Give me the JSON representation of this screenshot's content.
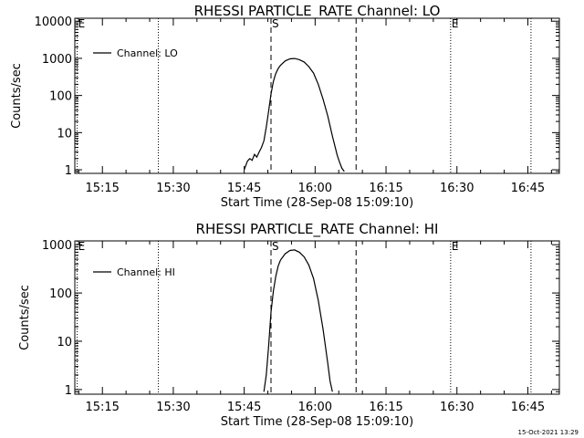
{
  "timestamp": "15-Oct-2021 13:29",
  "chart_data": [
    {
      "type": "line",
      "title": "RHESSI PARTICLE_RATE Channel: LO",
      "xlabel": "Start Time (28-Sep-08 15:09:10)",
      "ylabel": "Counts/sec",
      "y_scale": "log",
      "ylim": [
        0.8,
        12000
      ],
      "xlim": [
        "15:09:10",
        "16:51:40"
      ],
      "x_ticks": [
        "15:15",
        "15:30",
        "15:45",
        "16:00",
        "16:15",
        "16:30",
        "16:45"
      ],
      "y_ticks": [
        "1",
        "10",
        "100",
        "1000",
        "10000"
      ],
      "legend": {
        "label": "Channel: LO",
        "position": "top-left"
      },
      "markers": [
        {
          "label": "E",
          "time": "15:09:40",
          "style": "dotted"
        },
        {
          "label": "",
          "time": "15:26:50",
          "style": "dotted"
        },
        {
          "label": "S",
          "time": "15:50:40",
          "style": "dashed"
        },
        {
          "label": "",
          "time": "16:08:40",
          "style": "dashed"
        },
        {
          "label": "E",
          "time": "16:28:40",
          "style": "dotted"
        },
        {
          "label": "",
          "time": "16:45:40",
          "style": "dotted"
        }
      ],
      "series": [
        {
          "name": "Channel: LO",
          "x": [
            "15:45:00",
            "15:45:40",
            "15:46:10",
            "15:46:40",
            "15:47:10",
            "15:47:40",
            "15:48:10",
            "15:48:40",
            "15:49:10",
            "15:49:40",
            "15:50:10",
            "15:50:40",
            "15:51:10",
            "15:51:40",
            "15:52:10",
            "15:52:40",
            "15:53:40",
            "15:54:40",
            "15:55:40",
            "15:56:40",
            "15:57:40",
            "15:58:40",
            "15:59:40",
            "16:00:40",
            "16:01:40",
            "16:02:40",
            "16:03:40",
            "16:04:40",
            "16:05:10",
            "16:05:40",
            "16:06:10"
          ],
          "y": [
            1,
            1.7,
            2,
            1.8,
            2.6,
            2.2,
            3,
            4,
            6,
            14,
            38,
            110,
            240,
            390,
            530,
            650,
            850,
            970,
            990,
            920,
            800,
            600,
            400,
            200,
            80,
            28,
            8,
            2.5,
            1.6,
            1.1,
            0.9
          ]
        }
      ]
    },
    {
      "type": "line",
      "title": "RHESSI PARTICLE_RATE Channel: HI",
      "xlabel": "Start Time (28-Sep-08 15:09:10)",
      "ylabel": "Counts/sec",
      "y_scale": "log",
      "ylim": [
        0.8,
        1200
      ],
      "xlim": [
        "15:09:10",
        "16:51:40"
      ],
      "x_ticks": [
        "15:15",
        "15:30",
        "15:45",
        "16:00",
        "16:15",
        "16:30",
        "16:45"
      ],
      "y_ticks": [
        "1",
        "10",
        "100",
        "1000"
      ],
      "legend": {
        "label": "Channel: HI",
        "position": "top-left"
      },
      "markers": [
        {
          "label": "E",
          "time": "15:09:40",
          "style": "dotted"
        },
        {
          "label": "",
          "time": "15:26:50",
          "style": "dotted"
        },
        {
          "label": "S",
          "time": "15:50:40",
          "style": "dashed"
        },
        {
          "label": "",
          "time": "16:08:40",
          "style": "dashed"
        },
        {
          "label": "E",
          "time": "16:28:40",
          "style": "dotted"
        },
        {
          "label": "",
          "time": "16:45:40",
          "style": "dotted"
        }
      ],
      "series": [
        {
          "name": "Channel: HI",
          "x": [
            "15:49:10",
            "15:49:40",
            "15:50:10",
            "15:50:40",
            "15:51:10",
            "15:51:40",
            "15:52:10",
            "15:52:40",
            "15:53:40",
            "15:54:40",
            "15:55:40",
            "15:56:40",
            "15:57:40",
            "15:58:40",
            "15:59:40",
            "16:00:40",
            "16:01:40",
            "16:02:40",
            "16:03:10",
            "16:03:40"
          ],
          "y": [
            0.9,
            2,
            8,
            40,
            110,
            220,
            360,
            480,
            650,
            760,
            780,
            700,
            560,
            380,
            200,
            70,
            18,
            3.5,
            1.5,
            0.9
          ]
        }
      ]
    }
  ]
}
